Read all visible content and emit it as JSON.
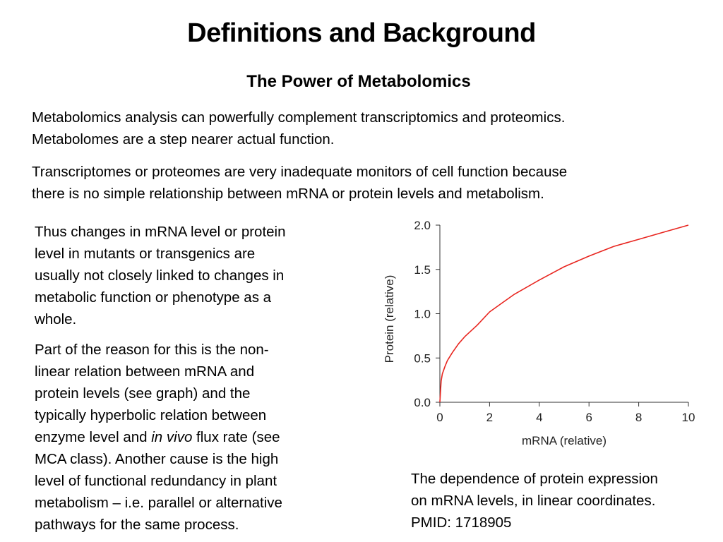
{
  "title": "Definitions and Background",
  "subtitle": "The Power of Metabolomics",
  "para1": [
    "Metabolomics analysis can powerfully complement transcriptomics and proteomics.",
    "Metabolomes are a step nearer actual function."
  ],
  "para2": [
    "Transcriptomes or proteomes are very inadequate monitors of cell function because",
    "there is no simple relationship between mRNA or protein levels and metabolism."
  ],
  "para3": [
    "Thus changes in mRNA level or protein",
    "level in mutants or transgenics are",
    "usually not closely linked to changes in",
    "metabolic function or phenotype as a",
    "whole."
  ],
  "para4": {
    "line1": "Part of the reason for this is the non-",
    "line2": "linear relation between mRNA and",
    "line3": "protein levels (see graph) and the",
    "line4": "typically hyperbolic relation between",
    "line5_pre": "enzyme level and ",
    "line5_italic": "in vivo",
    "line5_post": " flux rate (see",
    "line6": "MCA class). Another cause is the high",
    "line7": "level of functional redundancy in plant",
    "line8": "metabolism – i.e.  parallel or alternative",
    "line9": "pathways for the same process."
  },
  "caption": [
    "The dependence of protein expression",
    "on mRNA levels, in linear coordinates.",
    "PMID: 1718905"
  ],
  "chart_data": {
    "type": "line",
    "xlabel": "mRNA (relative)",
    "ylabel": "Protein (relative)",
    "xlim": [
      0,
      10
    ],
    "ylim": [
      0,
      2.0
    ],
    "xticks": [
      "0",
      "2",
      "4",
      "6",
      "8",
      "10"
    ],
    "yticks": [
      "0.0",
      "0.5",
      "1.0",
      "1.5",
      "2.0"
    ],
    "grid": false,
    "series": [
      {
        "color": "#e8251f",
        "x": [
          0,
          0.05,
          0.1,
          0.2,
          0.3,
          0.5,
          0.75,
          1,
          1.5,
          2,
          2.5,
          3,
          4,
          5,
          6,
          7,
          8,
          9,
          10
        ],
        "y": [
          0,
          0.24,
          0.32,
          0.4,
          0.47,
          0.56,
          0.66,
          0.74,
          0.87,
          1.02,
          1.12,
          1.22,
          1.38,
          1.53,
          1.65,
          1.76,
          1.84,
          1.92,
          2.0
        ]
      }
    ]
  }
}
